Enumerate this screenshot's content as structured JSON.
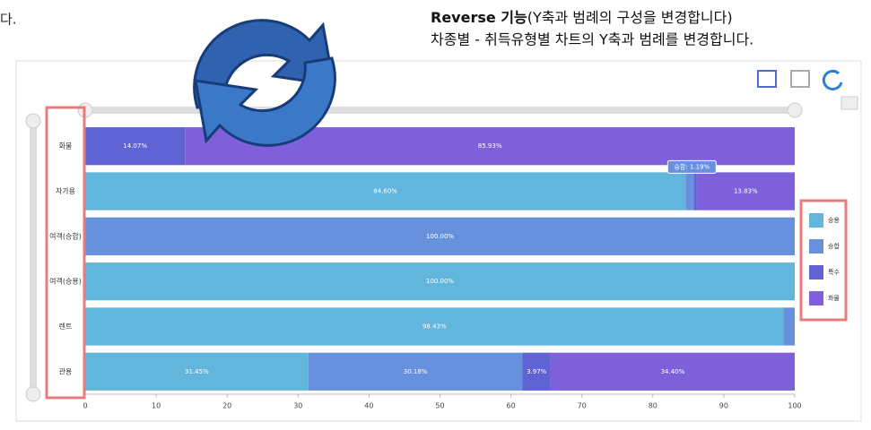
{
  "page_text": {
    "left_fragment": "다.",
    "heading_bold": "Reverse 기능",
    "heading_rest": "(Y축과 범례의 구성을 변경합니다)",
    "subheading": "차종별 - 취득유형별 차트의 Y축과 범례를 변경합니다."
  },
  "chart_data": {
    "type": "stacked-barh",
    "categories": [
      "화물",
      "자가용",
      "여객(승합)",
      "여객(승용)",
      "렌트",
      "관용"
    ],
    "series": [
      {
        "name": "승용",
        "color": "#62b6dc",
        "values": [
          0,
          84.6,
          0,
          100,
          98.43,
          31.45
        ],
        "value_labels": [
          null,
          "84.60%",
          null,
          "100.00%",
          "98.43%",
          "31.45%"
        ]
      },
      {
        "name": "승합",
        "color": "#6790dd",
        "values": [
          0,
          1.19,
          100,
          0,
          1.57,
          30.18
        ],
        "value_labels": [
          null,
          null,
          "100.00%",
          null,
          null,
          "30.18%"
        ]
      },
      {
        "name": "특수",
        "color": "#5f63d4",
        "values": [
          14.07,
          0.38,
          0,
          0,
          0,
          3.97
        ],
        "value_labels": [
          "14.07%",
          null,
          null,
          null,
          null,
          "3.97%"
        ]
      },
      {
        "name": "화물",
        "color": "#7e60da",
        "values": [
          85.93,
          13.83,
          0,
          0,
          0,
          34.4
        ],
        "value_labels": [
          "85.93%",
          "13.83%",
          null,
          null,
          null,
          "34.40%"
        ]
      }
    ],
    "tooltip": "승합: 1.19%",
    "xlim": [
      0,
      100
    ],
    "xticks": [
      0,
      10,
      20,
      30,
      40,
      50,
      60,
      70,
      80,
      90,
      100
    ]
  }
}
